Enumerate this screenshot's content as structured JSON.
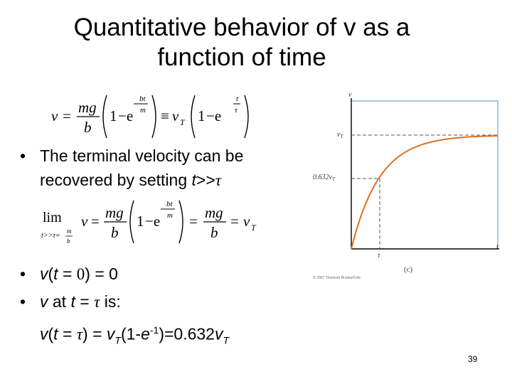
{
  "slide": {
    "title_line1": "Quantitative behavior of v as a",
    "title_line2": "function of time",
    "page_number": "39"
  },
  "equation1": {
    "v": "v",
    "eq": "=",
    "mg": "mg",
    "b": "b",
    "one": "1",
    "minus_e": "−e",
    "exp_bt": "bt",
    "exp_m": "m",
    "equiv": "≡",
    "vT_v": "v",
    "vT_sub": "T",
    "exp_t": "t",
    "exp_tau": "τ"
  },
  "equation2": {
    "lim": "lim",
    "lim_sub": "t>>τ=",
    "lim_sub_m": "m",
    "lim_sub_b": "b",
    "v": "v",
    "eq": "=",
    "mg": "mg",
    "b": "b",
    "one": "1",
    "minus_e": "−e",
    "exp_bt": "bt",
    "exp_m": "m",
    "eq2": "=",
    "mg2": "mg",
    "b2": "b",
    "eq3": "=",
    "vT_v": "v",
    "vT_sub": "T"
  },
  "bullets": {
    "dot": "•",
    "b1_line1": "The terminal velocity can be",
    "b1_line2_prefix": "recovered by setting ",
    "b1_line2_t": "t",
    "b1_line2_rel": ">>",
    "b1_line2_tau": "τ",
    "b2_v": "v",
    "b2_open": "(",
    "b2_t": "t",
    "b2_eq": " = ",
    "b2_zero": "0",
    "b2_rest": ") = 0",
    "b3_v": "v",
    "b3_at": " at ",
    "b3_t": "t",
    "b3_eq": " = ",
    "b3_tau": "τ",
    "b3_is": " is:",
    "b4_v": "v",
    "b4_open": "(",
    "b4_t": "t",
    "b4_eq": " = ",
    "b4_tau": "τ",
    "b4_mid": ") = ",
    "b4_vT": "v",
    "b4_T": "T",
    "b4_paren": "(1-",
    "b4_e": "e",
    "b4_sup": "-1",
    "b4_end": ")=0.632",
    "b4_vT2": "v",
    "b4_T2": "T"
  },
  "graph": {
    "y_axis_label": "v",
    "vT_label_v": "v",
    "vT_label_sub": "T",
    "label_0632": "0.632v",
    "label_0632_sub": "T",
    "tau_label": "τ",
    "t_label": "t",
    "panel_label": "(c)",
    "credit": "© 2007 Thomson Brooks/Cole",
    "colors": {
      "curve": "#e07020",
      "axes": "#000000",
      "panel_border": "#5b8bb8",
      "dashed": "#555555"
    },
    "curve_model": "v = vT(1 - e^(-t/τ))"
  }
}
